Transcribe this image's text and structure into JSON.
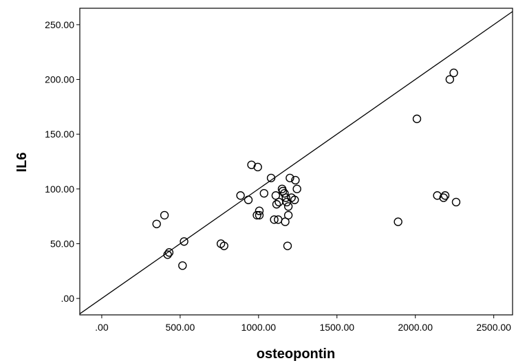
{
  "chart_data": {
    "type": "scatter",
    "title": "",
    "xlabel": "osteopontin",
    "ylabel": "IL6",
    "xlim": [
      -140,
      2620
    ],
    "ylim": [
      -15,
      265
    ],
    "x_ticks": [
      0,
      500,
      1000,
      1500,
      2000,
      2500
    ],
    "x_tick_labels": [
      ".00",
      "500.00",
      "1000.00",
      "1500.00",
      "2000.00",
      "2500.00"
    ],
    "y_ticks": [
      0,
      50,
      100,
      150,
      200,
      250
    ],
    "y_tick_labels": [
      ".00",
      "50.00",
      "100.00",
      "150.00",
      "200.00",
      "250.00"
    ],
    "grid": false,
    "reference_line": {
      "type": "identity",
      "slope": 0.1,
      "intercept": 0
    },
    "points": [
      {
        "x": 350,
        "y": 68
      },
      {
        "x": 400,
        "y": 76
      },
      {
        "x": 420,
        "y": 40
      },
      {
        "x": 430,
        "y": 42
      },
      {
        "x": 515,
        "y": 30
      },
      {
        "x": 525,
        "y": 52
      },
      {
        "x": 760,
        "y": 50
      },
      {
        "x": 780,
        "y": 48
      },
      {
        "x": 885,
        "y": 94
      },
      {
        "x": 935,
        "y": 90
      },
      {
        "x": 955,
        "y": 122
      },
      {
        "x": 990,
        "y": 76
      },
      {
        "x": 995,
        "y": 120
      },
      {
        "x": 1005,
        "y": 76
      },
      {
        "x": 1005,
        "y": 80
      },
      {
        "x": 1035,
        "y": 96
      },
      {
        "x": 1080,
        "y": 110
      },
      {
        "x": 1100,
        "y": 72
      },
      {
        "x": 1110,
        "y": 94
      },
      {
        "x": 1115,
        "y": 86
      },
      {
        "x": 1125,
        "y": 72
      },
      {
        "x": 1130,
        "y": 88
      },
      {
        "x": 1150,
        "y": 100
      },
      {
        "x": 1155,
        "y": 98
      },
      {
        "x": 1165,
        "y": 96
      },
      {
        "x": 1170,
        "y": 70
      },
      {
        "x": 1175,
        "y": 92
      },
      {
        "x": 1180,
        "y": 88
      },
      {
        "x": 1185,
        "y": 48
      },
      {
        "x": 1190,
        "y": 84
      },
      {
        "x": 1190,
        "y": 76
      },
      {
        "x": 1200,
        "y": 110
      },
      {
        "x": 1210,
        "y": 92
      },
      {
        "x": 1230,
        "y": 90
      },
      {
        "x": 1235,
        "y": 108
      },
      {
        "x": 1245,
        "y": 100
      },
      {
        "x": 1890,
        "y": 70
      },
      {
        "x": 2010,
        "y": 164
      },
      {
        "x": 2140,
        "y": 94
      },
      {
        "x": 2180,
        "y": 92
      },
      {
        "x": 2190,
        "y": 94
      },
      {
        "x": 2220,
        "y": 200
      },
      {
        "x": 2245,
        "y": 206
      },
      {
        "x": 2260,
        "y": 88
      }
    ]
  }
}
